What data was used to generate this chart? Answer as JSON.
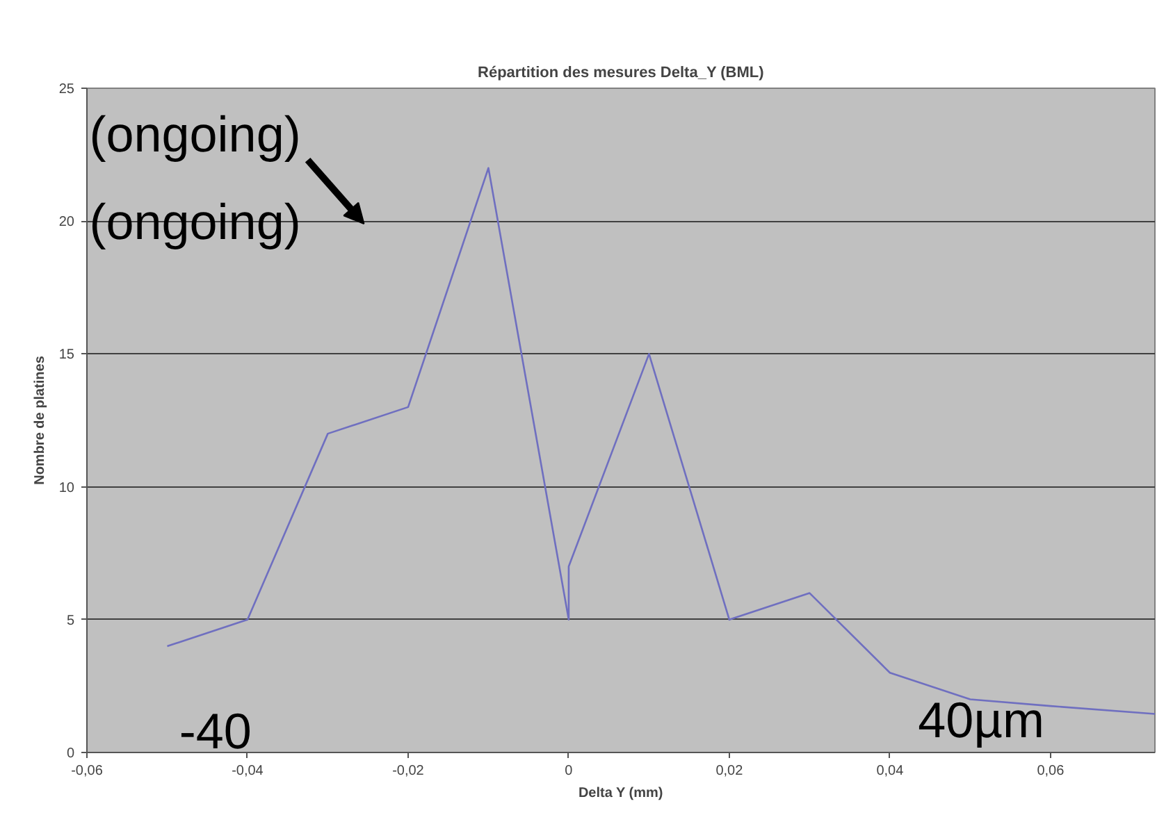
{
  "chart_data": {
    "type": "line",
    "title": "Répartition des mesures Delta_Y (BML)",
    "xlabel": "Delta Y (mm)",
    "ylabel": "Nombre de platines",
    "x": [
      -0.05,
      -0.04,
      -0.03,
      -0.02,
      -0.01,
      0,
      0,
      0.01,
      0.02,
      0.03,
      0.04,
      0.05,
      0.06,
      0.073
    ],
    "series": [
      {
        "color": "#6f6fc0",
        "values": [
          4,
          5,
          12,
          13,
          22,
          5,
          7,
          15,
          5,
          6,
          3,
          2,
          1.75,
          1.45
        ]
      }
    ],
    "xlim": [
      -0.06,
      0.073
    ],
    "ylim": [
      0,
      25
    ],
    "xticks": [
      {
        "value": -0.06,
        "label": "-0,06"
      },
      {
        "value": -0.04,
        "label": "-0,04"
      },
      {
        "value": -0.02,
        "label": "-0,02"
      },
      {
        "value": 0,
        "label": "0"
      },
      {
        "value": 0.02,
        "label": "0,02"
      },
      {
        "value": 0.04,
        "label": "0,04"
      },
      {
        "value": 0.06,
        "label": "0,06"
      }
    ],
    "yticks": [
      0,
      5,
      10,
      15,
      20,
      25
    ],
    "grid": "y",
    "marker": "none",
    "line_style": "solid",
    "annotations": [
      "(ongoing)",
      "(ongoing)",
      "-40",
      "40µm"
    ]
  }
}
